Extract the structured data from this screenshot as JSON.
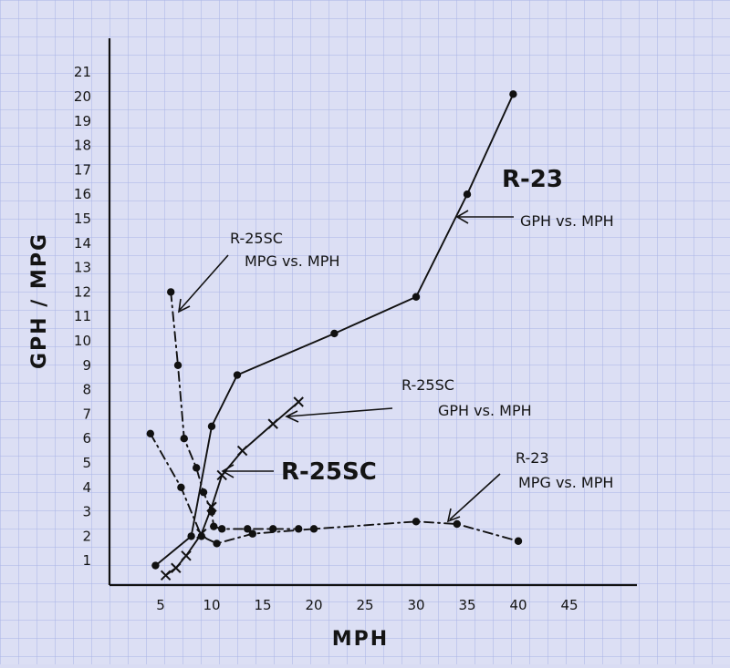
{
  "chart_data": {
    "type": "line",
    "xlabel": "MPH",
    "ylabel": "GPH / MPG",
    "xlim": [
      0,
      50
    ],
    "ylim": [
      0,
      21.5
    ],
    "x_ticks": [
      5,
      10,
      15,
      20,
      25,
      30,
      35,
      40,
      45
    ],
    "y_ticks": [
      1,
      2,
      3,
      4,
      5,
      6,
      7,
      8,
      9,
      10,
      11,
      12,
      13,
      14,
      15,
      16,
      17,
      18,
      19,
      20,
      21
    ],
    "series": [
      {
        "name": "R-23 GPH vs. MPH",
        "style": "solid",
        "marker": "dot",
        "x": [
          4.5,
          8,
          10,
          12.5,
          22,
          30,
          35,
          39.5
        ],
        "y": [
          0.8,
          2,
          6.5,
          8.6,
          10.3,
          11.8,
          16,
          20.1
        ]
      },
      {
        "name": "R-25SC GPH vs. MPH",
        "style": "solid",
        "marker": "x",
        "x": [
          5.5,
          6.5,
          7.5,
          9,
          10,
          11,
          13,
          16,
          18.5
        ],
        "y": [
          0.4,
          0.7,
          1.2,
          2.1,
          3.2,
          4.5,
          5.5,
          6.6,
          7.5
        ]
      },
      {
        "name": "R-25SC MPG vs. MPH",
        "style": "dashdot",
        "marker": "dot",
        "x": [
          6,
          6.7,
          7.3,
          8.5,
          9.2,
          10,
          10.2,
          11,
          13.5,
          16,
          18.5
        ],
        "y": [
          12,
          9,
          6,
          4.8,
          3.8,
          3,
          2.4,
          2.3,
          2.3,
          2.3,
          2.3
        ]
      },
      {
        "name": "R-23 MPG vs. MPH",
        "style": "dashdot",
        "marker": "dot",
        "x": [
          4,
          7,
          9,
          10.5,
          14,
          20,
          30,
          34,
          40
        ],
        "y": [
          6.2,
          4,
          2,
          1.7,
          2.1,
          2.3,
          2.6,
          2.5,
          1.8
        ]
      }
    ],
    "annotations": [
      {
        "id": "r23-gph",
        "lines": [
          "R-23",
          "GPH vs. MPH"
        ]
      },
      {
        "id": "r25-mpg",
        "lines": [
          "R-25SC",
          "MPG vs. MPH"
        ]
      },
      {
        "id": "r25-gph",
        "lines": [
          "R-25SC",
          "GPH vs. MPH"
        ]
      },
      {
        "id": "r25",
        "lines": [
          "R-25SC"
        ]
      },
      {
        "id": "r23-mpg",
        "lines": [
          "R-23",
          "MPG vs. MPH"
        ]
      }
    ]
  }
}
